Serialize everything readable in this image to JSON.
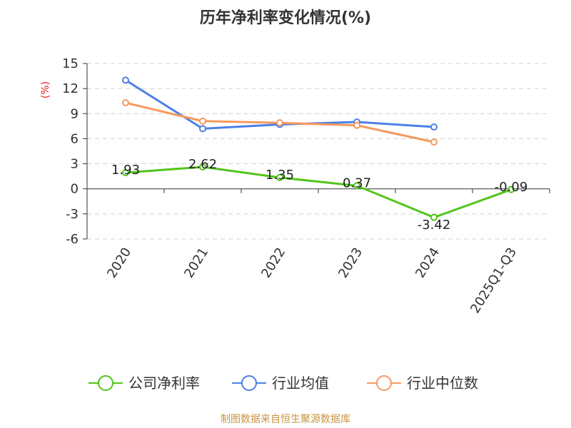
{
  "chart_data": {
    "type": "line",
    "title": "历年净利率变化情况(%)",
    "ylabel": "(%)",
    "categories": [
      "2020",
      "2021",
      "2022",
      "2023",
      "2024",
      "2025Q1-Q3"
    ],
    "ylim": [
      -6,
      15
    ],
    "yticks": [
      15,
      12,
      9,
      6,
      3,
      0,
      -3,
      -6
    ],
    "grid": true,
    "legend_position": "bottom",
    "series": [
      {
        "name": "公司净利率",
        "color": "#52C41A",
        "values": [
          1.93,
          2.62,
          1.35,
          0.37,
          -3.42,
          -0.09
        ],
        "labels": [
          "1.93",
          "2.62",
          "1.35",
          "0.37",
          "-3.42",
          "-0.09"
        ]
      },
      {
        "name": "行业均值",
        "color": "#4E7FE8",
        "values": [
          13.0,
          7.2,
          7.7,
          8.0,
          7.4,
          null
        ]
      },
      {
        "name": "行业中位数",
        "color": "#F59A5E",
        "values": [
          10.3,
          8.1,
          7.9,
          7.6,
          5.6,
          null
        ]
      }
    ]
  },
  "source": "制图数据来自恒生聚源数据库",
  "colors": {
    "ylabel": "#E02020",
    "source": "#C8963E",
    "grid": "#D0D0D0",
    "axis": "#333333"
  }
}
